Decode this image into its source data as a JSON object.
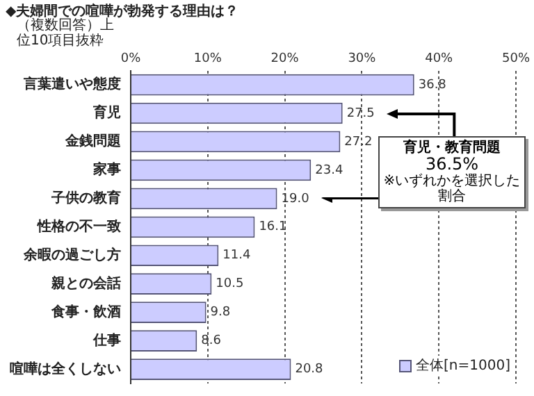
{
  "chart_data": {
    "type": "bar",
    "orientation": "horizontal",
    "title": "◆夫婦間での喧嘩が勃発する理由は？",
    "subtitle": "（複数回答）上位10項目抜粋",
    "categories": [
      "言葉遣いや態度",
      "育児",
      "金銭問題",
      "家事",
      "子供の教育",
      "性格の不一致",
      "余暇の過ごし方",
      "親との会話",
      "食事・飲酒",
      "仕事",
      "喧嘩は全くしない"
    ],
    "series": [
      {
        "name": "全体[n=1000]",
        "color": "#ccccff",
        "values": [
          36.8,
          27.5,
          27.2,
          23.4,
          19.0,
          16.1,
          11.4,
          10.5,
          9.8,
          8.6,
          20.8
        ],
        "value_labels": [
          "36.8",
          "27.5",
          "27.2",
          "23.4",
          "19.0",
          "16.1",
          "11.4",
          "10.5",
          "9.8",
          "8.6",
          "20.8"
        ]
      }
    ],
    "xlim": [
      0,
      50
    ],
    "xticks": [
      {
        "value": 0,
        "label": "0%"
      },
      {
        "value": 10,
        "label": "10%"
      },
      {
        "value": 20,
        "label": "20%"
      },
      {
        "value": 30,
        "label": "30%"
      },
      {
        "value": 40,
        "label": "40%"
      },
      {
        "value": 50,
        "label": "50%"
      }
    ],
    "annotations": [
      "育児・教育問題",
      "36.5%",
      "※いずれかを選択した割合"
    ],
    "grid": "x",
    "legend": "bottom right"
  }
}
